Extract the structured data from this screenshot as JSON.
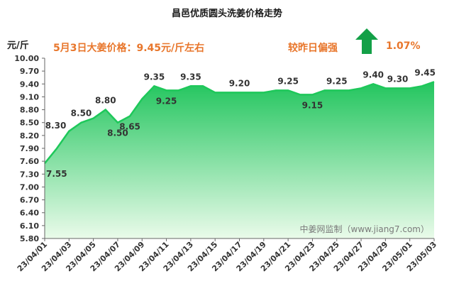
{
  "title": "昌邑优质圆头洗姜价格走势",
  "unit_label": "元/斤",
  "price_note": "5月3日大姜价格：9.45元/斤左右",
  "change": {
    "label": "较昨日偏强",
    "value": "1.07%",
    "direction": "up",
    "arrow_color": "#13a047"
  },
  "watermark": "中姜网监制（www.jiang7.com）",
  "colors": {
    "line": "#1ec85a",
    "fill_top": "#22c55e",
    "fill_bottom": "#eafbea",
    "accent": "#e8762b"
  },
  "chart_data": {
    "type": "area",
    "title": "昌邑优质圆头洗姜价格走势",
    "ylabel": "元/斤",
    "ylim": [
      5.8,
      10.0
    ],
    "y_ticks": [
      "10.00",
      "9.70",
      "9.40",
      "9.10",
      "8.80",
      "8.50",
      "8.20",
      "7.90",
      "7.60",
      "7.30",
      "7.00",
      "6.70",
      "6.40",
      "6.10",
      "5.80"
    ],
    "x_tick_labels": [
      "23/04/01",
      "23/04/03",
      "23/04/05",
      "23/04/07",
      "23/04/09",
      "23/04/11",
      "23/04/13",
      "23/04/15",
      "23/04/17",
      "23/04/19",
      "23/04/21",
      "23/04/23",
      "23/04/25",
      "23/04/27",
      "23/04/29",
      "23/05/01",
      "23/05/03"
    ],
    "x": [
      "23/04/01",
      "23/04/02",
      "23/04/03",
      "23/04/04",
      "23/04/05",
      "23/04/06",
      "23/04/07",
      "23/04/08",
      "23/04/09",
      "23/04/10",
      "23/04/11",
      "23/04/12",
      "23/04/13",
      "23/04/14",
      "23/04/15",
      "23/04/16",
      "23/04/17",
      "23/04/18",
      "23/04/19",
      "23/04/20",
      "23/04/21",
      "23/04/22",
      "23/04/23",
      "23/04/24",
      "23/04/25",
      "23/04/26",
      "23/04/27",
      "23/04/28",
      "23/04/29",
      "23/04/30",
      "23/05/01",
      "23/05/02",
      "23/05/03"
    ],
    "values": [
      7.55,
      7.9,
      8.3,
      8.5,
      8.6,
      8.8,
      8.5,
      8.65,
      9.05,
      9.35,
      9.25,
      9.25,
      9.35,
      9.35,
      9.2,
      9.2,
      9.2,
      9.2,
      9.2,
      9.25,
      9.25,
      9.15,
      9.15,
      9.25,
      9.25,
      9.25,
      9.3,
      9.4,
      9.3,
      9.3,
      9.3,
      9.35,
      9.45
    ],
    "data_labels": [
      {
        "index": 0,
        "text": "7.55",
        "pos": "below"
      },
      {
        "index": 2,
        "text": "8.30",
        "pos": "left"
      },
      {
        "index": 3,
        "text": "8.50",
        "pos": "above"
      },
      {
        "index": 5,
        "text": "8.80",
        "pos": "above"
      },
      {
        "index": 6,
        "text": "8.50",
        "pos": "below"
      },
      {
        "index": 7,
        "text": "8.65",
        "pos": "below"
      },
      {
        "index": 9,
        "text": "9.35",
        "pos": "above"
      },
      {
        "index": 10,
        "text": "9.25",
        "pos": "below"
      },
      {
        "index": 12,
        "text": "9.35",
        "pos": "above"
      },
      {
        "index": 16,
        "text": "9.20",
        "pos": "above"
      },
      {
        "index": 20,
        "text": "9.25",
        "pos": "above"
      },
      {
        "index": 22,
        "text": "9.15",
        "pos": "below"
      },
      {
        "index": 24,
        "text": "9.25",
        "pos": "above"
      },
      {
        "index": 27,
        "text": "9.40",
        "pos": "above"
      },
      {
        "index": 29,
        "text": "9.30",
        "pos": "above"
      },
      {
        "index": 32,
        "text": "9.45",
        "pos": "above"
      }
    ],
    "grid": false,
    "legend": "none"
  }
}
